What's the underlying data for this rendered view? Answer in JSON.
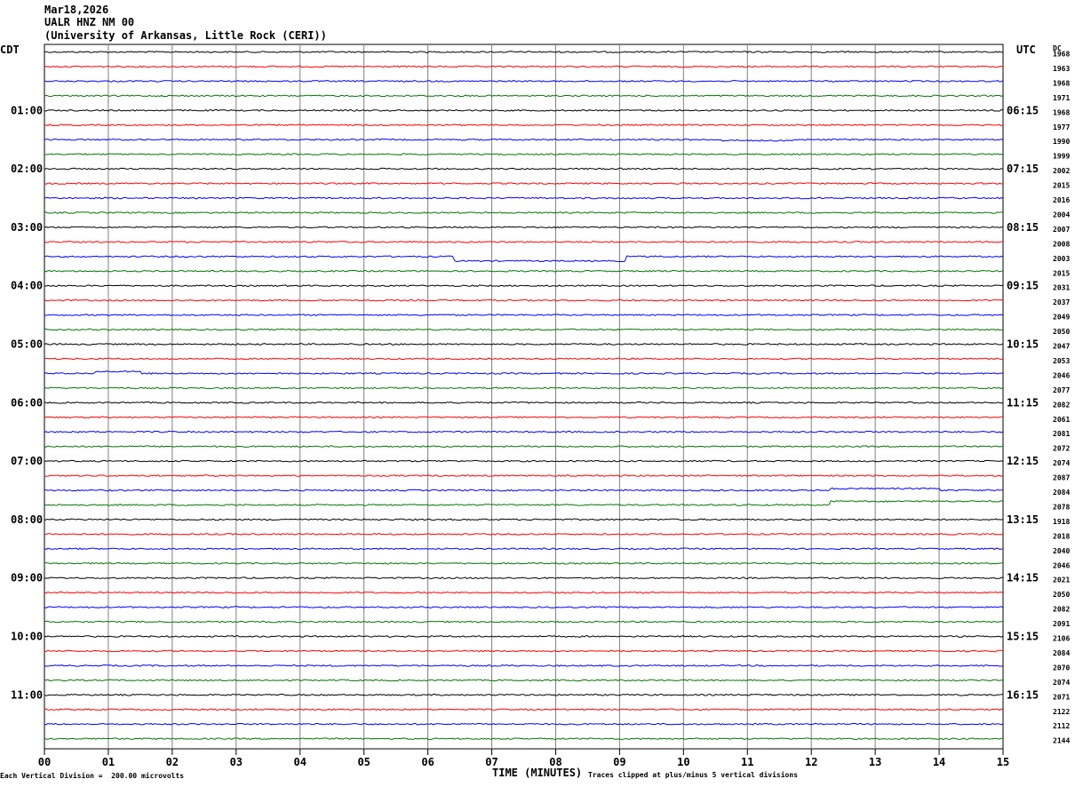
{
  "header": {
    "date": "Mar18,2026",
    "station": "UALR HNZ NM 00",
    "network": "(University of Arkansas, Little Rock (CERI))"
  },
  "chart_data": {
    "type": "line",
    "left_timezone": "CDT",
    "right_timezone": "UTC",
    "dc_label": "DC",
    "xlabel": "TIME (MINUTES)",
    "x_ticks": [
      "00",
      "01",
      "02",
      "03",
      "04",
      "05",
      "06",
      "07",
      "08",
      "09",
      "10",
      "11",
      "12",
      "13",
      "14",
      "15"
    ],
    "xlim": [
      0,
      15
    ],
    "left_hour_labels": [
      "01:00",
      "02:00",
      "03:00",
      "04:00",
      "05:00",
      "06:00",
      "07:00",
      "08:00",
      "09:00",
      "10:00",
      "11:00"
    ],
    "right_hour_labels": [
      "06:15",
      "07:15",
      "08:15",
      "09:15",
      "10:15",
      "11:15",
      "12:15",
      "13:15",
      "14:15",
      "15:15",
      "16:15"
    ],
    "trace_colors": [
      "#000000",
      "#ff0000",
      "#0000ff",
      "#007700"
    ],
    "dc_values": [
      "1968",
      "1963",
      "1968",
      "1971",
      "1968",
      "1977",
      "1990",
      "1999",
      "2002",
      "2015",
      "2016",
      "2004",
      "2007",
      "2008",
      "2003",
      "2015",
      "2031",
      "2037",
      "2049",
      "2050",
      "2047",
      "2053",
      "2046",
      "2077",
      "2082",
      "2061",
      "2081",
      "2072",
      "2074",
      "2087",
      "2084",
      "2078",
      "1918",
      "2018",
      "2040",
      "2046",
      "2021",
      "2050",
      "2082",
      "2091",
      "2106",
      "2084",
      "2070",
      "2074",
      "2071",
      "2122",
      "2112",
      "2144"
    ],
    "events": [
      {
        "trace": 14,
        "start_min": 6.4,
        "end_min": 9.1,
        "offset": 5
      },
      {
        "trace": 30,
        "start_min": 12.3,
        "end_min": 14.0,
        "offset": -2
      },
      {
        "trace": 31,
        "start_min": 12.3,
        "end_min": 15.0,
        "offset": -4
      },
      {
        "trace": 6,
        "start_min": 10.6,
        "end_min": 11.7,
        "offset": 1
      },
      {
        "trace": 22,
        "start_min": 0.8,
        "end_min": 1.5,
        "offset": -2
      }
    ]
  },
  "footer": {
    "scale_note": "Each Vertical Division =  200.00 microvolts",
    "clip_note": "Traces clipped at plus/minus 5 vertical divisions"
  }
}
